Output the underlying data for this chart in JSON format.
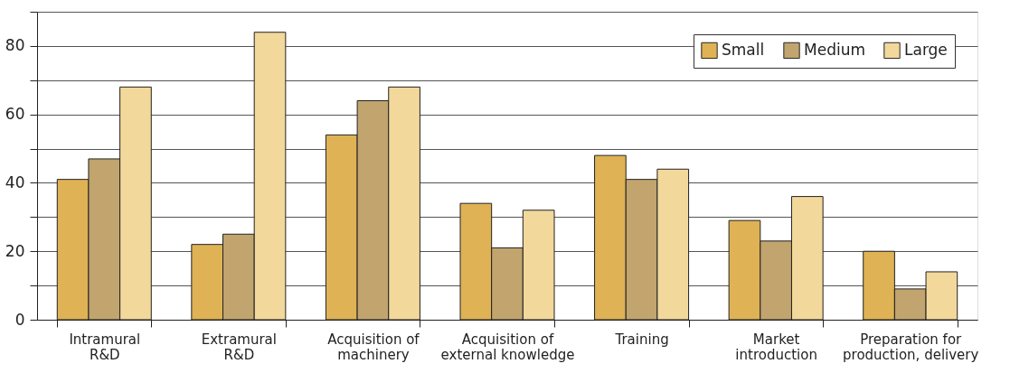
{
  "chart_data": {
    "type": "bar",
    "categories": [
      "Intramural\nR&D",
      "Extramural\nR&D",
      "Acquisition of\nmachinery",
      "Acquisition of\nexternal knowledge",
      "Training",
      "Market\nintroduction",
      "Preparation for\nproduction, delivery"
    ],
    "series": [
      {
        "name": "Small",
        "color": "#deb255",
        "values": [
          41,
          22,
          54,
          34,
          48,
          29,
          20
        ]
      },
      {
        "name": "Medium",
        "color": "#c1a46e",
        "values": [
          47,
          25,
          64,
          21,
          41,
          23,
          9
        ]
      },
      {
        "name": "Large",
        "color": "#f3d89c",
        "values": [
          68,
          84,
          68,
          32,
          44,
          36,
          14
        ]
      }
    ],
    "ylim": [
      0,
      90
    ],
    "yticks": [
      0,
      {
        "value": 10,
        "label": null
      },
      20,
      {
        "value": 30,
        "label": null
      },
      40,
      {
        "value": 50,
        "label": null
      },
      60,
      {
        "value": 70,
        "label": null
      },
      80,
      {
        "value": 90,
        "label": null
      }
    ],
    "grid": "y",
    "legend": "top right"
  }
}
